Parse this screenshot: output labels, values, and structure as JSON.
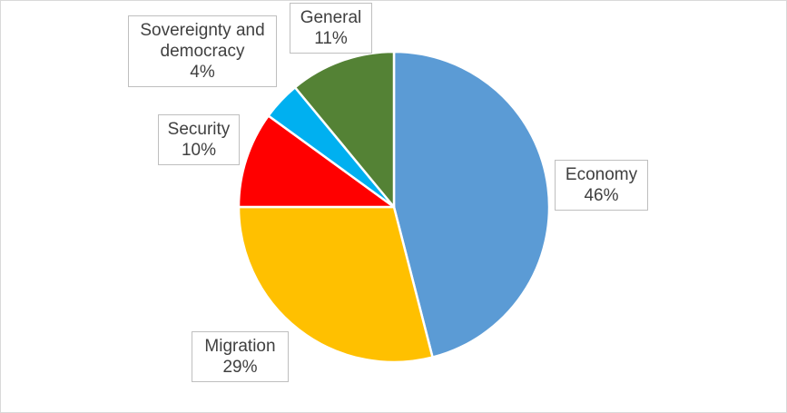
{
  "chart_data": {
    "type": "pie",
    "title": "",
    "start_angle_deg": 0,
    "direction": "clockwise",
    "slices": [
      {
        "name": "Economy",
        "value": 46,
        "label": "46%",
        "color": "#5B9BD5"
      },
      {
        "name": "Migration",
        "value": 29,
        "label": "29%",
        "color": "#FFC000"
      },
      {
        "name": "Security",
        "value": 10,
        "label": "10%",
        "color": "#FF0000"
      },
      {
        "name": "Sovereignty and democracy",
        "value": 4,
        "label": "4%",
        "color": "#00B0F0"
      },
      {
        "name": "General",
        "value": 11,
        "label": "11%",
        "color": "#548235"
      }
    ]
  }
}
